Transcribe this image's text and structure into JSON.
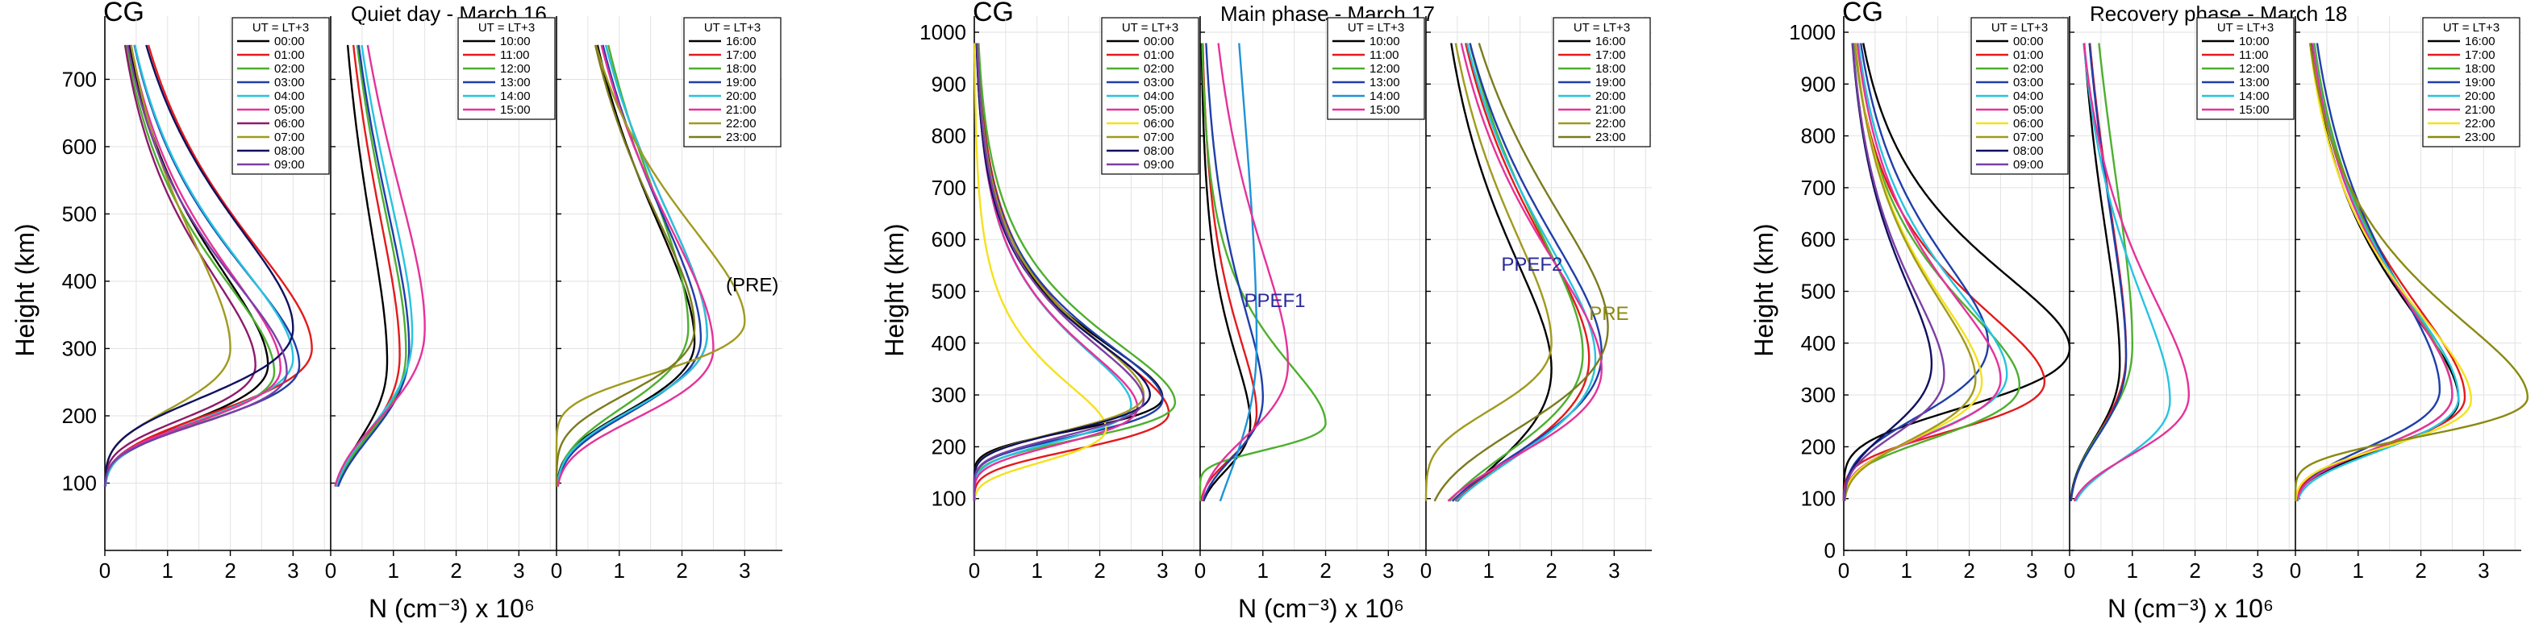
{
  "chart_data": [
    {
      "type": "line",
      "label": "CG",
      "title": "Quiet day - March 16",
      "ylabel": "Height (km)",
      "xlabel": "N (cm⁻³) x 10⁶",
      "ylim": [
        0,
        770
      ],
      "yticks": [
        100,
        200,
        300,
        400,
        500,
        600,
        700
      ],
      "xlim": [
        0,
        3.6
      ],
      "xticks": [
        0,
        1,
        2,
        3
      ],
      "legend_title": "UT = LT+3",
      "annotations": [
        {
          "text": "(PRE)",
          "x": 2.7,
          "y": 385,
          "color": "#000000",
          "panel": 2
        }
      ],
      "panels": [
        {
          "series": [
            {
              "name": "00:00",
              "color": "#000000",
              "peak": 2.6,
              "hm": 275,
              "bw": 65,
              "tw": 100
            },
            {
              "name": "01:00",
              "color": "#e41a1c",
              "peak": 3.3,
              "hm": 300,
              "bw": 75,
              "tw": 110
            },
            {
              "name": "02:00",
              "color": "#4daf2e",
              "peak": 2.7,
              "hm": 265,
              "bw": 60,
              "tw": 95
            },
            {
              "name": "03:00",
              "color": "#1f3fa8",
              "peak": 3.1,
              "hm": 275,
              "bw": 65,
              "tw": 100
            },
            {
              "name": "04:00",
              "color": "#27c3e0",
              "peak": 3.0,
              "hm": 285,
              "bw": 70,
              "tw": 100
            },
            {
              "name": "05:00",
              "color": "#e5329a",
              "peak": 2.8,
              "hm": 270,
              "bw": 62,
              "tw": 100
            },
            {
              "name": "06:00",
              "color": "#8e1a6b",
              "peak": 2.4,
              "hm": 275,
              "bw": 62,
              "tw": 95
            },
            {
              "name": "07:00",
              "color": "#a09a1e",
              "peak": 2.0,
              "hm": 300,
              "bw": 70,
              "tw": 110
            },
            {
              "name": "08:00",
              "color": "#101060",
              "peak": 3.0,
              "hm": 330,
              "bw": 80,
              "tw": 105
            },
            {
              "name": "09:00",
              "color": "#7b3fa5",
              "peak": 2.9,
              "hm": 265,
              "bw": 60,
              "tw": 95
            }
          ]
        },
        {
          "series": [
            {
              "name": "10:00",
              "color": "#000000",
              "peak": 0.9,
              "hm": 280,
              "bw": 90,
              "tw": 140
            },
            {
              "name": "11:00",
              "color": "#e41a1c",
              "peak": 1.1,
              "hm": 290,
              "bw": 95,
              "tw": 145
            },
            {
              "name": "12:00",
              "color": "#4daf2e",
              "peak": 1.2,
              "hm": 295,
              "bw": 95,
              "tw": 150
            },
            {
              "name": "13:00",
              "color": "#1f3fa8",
              "peak": 1.25,
              "hm": 300,
              "bw": 100,
              "tw": 150
            },
            {
              "name": "14:00",
              "color": "#27c3e0",
              "peak": 1.3,
              "hm": 320,
              "bw": 105,
              "tw": 150
            },
            {
              "name": "15:00",
              "color": "#e5329a",
              "peak": 1.5,
              "hm": 330,
              "bw": 105,
              "tw": 150
            }
          ]
        },
        {
          "series": [
            {
              "name": "16:00",
              "color": "#000000",
              "peak": 2.2,
              "hm": 310,
              "bw": 80,
              "tw": 130
            },
            {
              "name": "17:00",
              "color": "#e41a1c",
              "peak": 2.4,
              "hm": 320,
              "bw": 85,
              "tw": 135
            },
            {
              "name": "18:00",
              "color": "#4daf2e",
              "peak": 2.1,
              "hm": 330,
              "bw": 90,
              "tw": 150
            },
            {
              "name": "19:00",
              "color": "#1f3fa8",
              "peak": 2.3,
              "hm": 315,
              "bw": 85,
              "tw": 135
            },
            {
              "name": "20:00",
              "color": "#27c3e0",
              "peak": 2.4,
              "hm": 320,
              "bw": 85,
              "tw": 135
            },
            {
              "name": "21:00",
              "color": "#e5329a",
              "peak": 2.5,
              "hm": 300,
              "bw": 80,
              "tw": 130
            },
            {
              "name": "22:00",
              "color": "#a09a1e",
              "peak": 3.0,
              "hm": 340,
              "bw": 60,
              "tw": 100
            },
            {
              "name": "23:00",
              "color": "#7b7b1e",
              "peak": 2.2,
              "hm": 330,
              "bw": 75,
              "tw": 120
            }
          ]
        }
      ]
    },
    {
      "type": "line",
      "label": "CG",
      "title": "Main phase - March 17",
      "ylabel": "Height (km)",
      "xlabel": "N (cm⁻³) x 10⁶",
      "ylim": [
        0,
        1000
      ],
      "yticks": [
        100,
        200,
        300,
        400,
        500,
        600,
        700,
        800,
        900,
        1000
      ],
      "xlim": [
        0,
        3.6
      ],
      "xticks": [
        0,
        1,
        2,
        3
      ],
      "legend_title": "UT = LT+3",
      "annotations": [
        {
          "text": "PPEF1",
          "x": 0.7,
          "y": 470,
          "color": "#2a2a9a",
          "panel": 1
        },
        {
          "text": "PPEF2",
          "x": 1.2,
          "y": 540,
          "color": "#2a2a9a",
          "panel": 2
        },
        {
          "text": "PRE",
          "x": 2.6,
          "y": 445,
          "color": "#8a8a10",
          "panel": 2
        }
      ],
      "panels": [
        {
          "series": [
            {
              "name": "00:00",
              "color": "#000000",
              "peak": 3.0,
              "hm": 295,
              "bw": 50,
              "tw": 70
            },
            {
              "name": "01:00",
              "color": "#e41a1c",
              "peak": 3.1,
              "hm": 265,
              "bw": 55,
              "tw": 80
            },
            {
              "name": "02:00",
              "color": "#4daf2e",
              "peak": 3.2,
              "hm": 285,
              "bw": 55,
              "tw": 80
            },
            {
              "name": "03:00",
              "color": "#1f3fa8",
              "peak": 3.0,
              "hm": 290,
              "bw": 55,
              "tw": 75
            },
            {
              "name": "04:00",
              "color": "#27c3e0",
              "peak": 2.5,
              "hm": 280,
              "bw": 55,
              "tw": 75
            },
            {
              "name": "05:00",
              "color": "#e5329a",
              "peak": 2.6,
              "hm": 275,
              "bw": 55,
              "tw": 75
            },
            {
              "name": "06:00",
              "color": "#f5e11c",
              "peak": 2.1,
              "hm": 235,
              "bw": 50,
              "tw": 60
            },
            {
              "name": "07:00",
              "color": "#a09a1e",
              "peak": 2.7,
              "hm": 300,
              "bw": 55,
              "tw": 75
            },
            {
              "name": "08:00",
              "color": "#101060",
              "peak": 2.8,
              "hm": 300,
              "bw": 55,
              "tw": 70
            },
            {
              "name": "09:00",
              "color": "#7b3fa5",
              "peak": 2.7,
              "hm": 290,
              "bw": 55,
              "tw": 75
            }
          ]
        },
        {
          "series": [
            {
              "name": "10:00",
              "color": "#000000",
              "peak": 0.8,
              "hm": 245,
              "bw": 70,
              "tw": 90
            },
            {
              "name": "11:00",
              "color": "#e41a1c",
              "peak": 0.9,
              "hm": 265,
              "bw": 70,
              "tw": 100
            },
            {
              "name": "12:00",
              "color": "#4daf2e",
              "peak": 2.0,
              "hm": 245,
              "bw": 40,
              "tw": 80
            },
            {
              "name": "13:00",
              "color": "#1f3fa8",
              "peak": 1.0,
              "hm": 295,
              "bw": 90,
              "tw": 120
            },
            {
              "name": "14:00",
              "color": "#1e93d6",
              "peak": 0.9,
              "hm": 400,
              "bw": 200,
              "tw": 380
            },
            {
              "name": "15:00",
              "color": "#e5329a",
              "peak": 1.4,
              "hm": 360,
              "bw": 110,
              "tw": 150
            }
          ]
        },
        {
          "series": [
            {
              "name": "16:00",
              "color": "#000000",
              "peak": 2.0,
              "hm": 350,
              "bw": 150,
              "tw": 150
            },
            {
              "name": "17:00",
              "color": "#e41a1c",
              "peak": 2.6,
              "hm": 370,
              "bw": 150,
              "tw": 160
            },
            {
              "name": "18:00",
              "color": "#4daf2e",
              "peak": 2.5,
              "hm": 380,
              "bw": 150,
              "tw": 170
            },
            {
              "name": "19:00",
              "color": "#1f3fa8",
              "peak": 2.8,
              "hm": 380,
              "bw": 150,
              "tw": 160
            },
            {
              "name": "20:00",
              "color": "#27c3e0",
              "peak": 2.7,
              "hm": 370,
              "bw": 150,
              "tw": 160
            },
            {
              "name": "21:00",
              "color": "#e5329a",
              "peak": 2.8,
              "hm": 350,
              "bw": 130,
              "tw": 150
            },
            {
              "name": "22:00",
              "color": "#a09a1e",
              "peak": 2.0,
              "hm": 400,
              "bw": 100,
              "tw": 150
            },
            {
              "name": "23:00",
              "color": "#7b7b1e",
              "peak": 2.9,
              "hm": 430,
              "bw": 150,
              "tw": 160
            }
          ]
        }
      ]
    },
    {
      "type": "line",
      "label": "CG",
      "title": "Recovery phase - March 18",
      "ylabel": "Height (km)",
      "xlabel": "N (cm⁻³) x 10⁶",
      "ylim": [
        0,
        1000
      ],
      "yticks": [
        0,
        100,
        200,
        300,
        400,
        500,
        600,
        700,
        800,
        900,
        1000
      ],
      "xlim": [
        0,
        3.6
      ],
      "xticks": [
        0,
        1,
        2,
        3
      ],
      "legend_title": "UT = LT+3",
      "annotations": [],
      "panels": [
        {
          "series": [
            {
              "name": "00:00",
              "color": "#000000",
              "peak": 3.6,
              "hm": 390,
              "bw": 90,
              "tw": 100
            },
            {
              "name": "01:00",
              "color": "#e41a1c",
              "peak": 3.2,
              "hm": 325,
              "bw": 75,
              "tw": 95
            },
            {
              "name": "02:00",
              "color": "#4daf2e",
              "peak": 2.8,
              "hm": 320,
              "bw": 80,
              "tw": 100
            },
            {
              "name": "03:00",
              "color": "#1f3fa8",
              "peak": 2.3,
              "hm": 400,
              "bw": 110,
              "tw": 110
            },
            {
              "name": "04:00",
              "color": "#27c3e0",
              "peak": 2.6,
              "hm": 340,
              "bw": 90,
              "tw": 110
            },
            {
              "name": "05:00",
              "color": "#e5329a",
              "peak": 2.5,
              "hm": 330,
              "bw": 85,
              "tw": 110
            },
            {
              "name": "06:00",
              "color": "#f5e11c",
              "peak": 2.2,
              "hm": 325,
              "bw": 85,
              "tw": 110
            },
            {
              "name": "07:00",
              "color": "#a09a1e",
              "peak": 2.1,
              "hm": 330,
              "bw": 90,
              "tw": 110
            },
            {
              "name": "08:00",
              "color": "#101060",
              "peak": 1.4,
              "hm": 360,
              "bw": 100,
              "tw": 110
            },
            {
              "name": "09:00",
              "color": "#7b3fa5",
              "peak": 1.6,
              "hm": 340,
              "bw": 90,
              "tw": 110
            }
          ]
        },
        {
          "series": [
            {
              "name": "10:00",
              "color": "#000000",
              "peak": 0.8,
              "hm": 360,
              "bw": 110,
              "tw": 180
            },
            {
              "name": "11:00",
              "color": "#e41a1c",
              "peak": 0.9,
              "hm": 380,
              "bw": 120,
              "tw": 200
            },
            {
              "name": "12:00",
              "color": "#4daf2e",
              "peak": 1.0,
              "hm": 395,
              "bw": 125,
              "tw": 240
            },
            {
              "name": "13:00",
              "color": "#1f3fa8",
              "peak": 0.9,
              "hm": 370,
              "bw": 115,
              "tw": 200
            },
            {
              "name": "14:00",
              "color": "#27c3e0",
              "peak": 1.6,
              "hm": 290,
              "bw": 90,
              "tw": 140
            },
            {
              "name": "15:00",
              "color": "#e5329a",
              "peak": 1.9,
              "hm": 300,
              "bw": 90,
              "tw": 130
            }
          ]
        },
        {
          "series": [
            {
              "name": "16:00",
              "color": "#000000",
              "peak": 2.6,
              "hm": 290,
              "bw": 75,
              "tw": 120
            },
            {
              "name": "17:00",
              "color": "#e41a1c",
              "peak": 2.7,
              "hm": 295,
              "bw": 75,
              "tw": 125
            },
            {
              "name": "18:00",
              "color": "#4daf2e",
              "peak": 2.5,
              "hm": 300,
              "bw": 80,
              "tw": 130
            },
            {
              "name": "19:00",
              "color": "#1f3fa8",
              "peak": 2.3,
              "hm": 310,
              "bw": 85,
              "tw": 140
            },
            {
              "name": "20:00",
              "color": "#27c3e0",
              "peak": 2.6,
              "hm": 295,
              "bw": 80,
              "tw": 125
            },
            {
              "name": "21:00",
              "color": "#e5329a",
              "peak": 2.5,
              "hm": 300,
              "bw": 80,
              "tw": 125
            },
            {
              "name": "22:00",
              "color": "#f5e11c",
              "peak": 2.8,
              "hm": 290,
              "bw": 70,
              "tw": 115
            },
            {
              "name": "23:00",
              "color": "#8a8a10",
              "peak": 3.7,
              "hm": 295,
              "bw": 60,
              "tw": 105
            }
          ]
        }
      ]
    }
  ]
}
